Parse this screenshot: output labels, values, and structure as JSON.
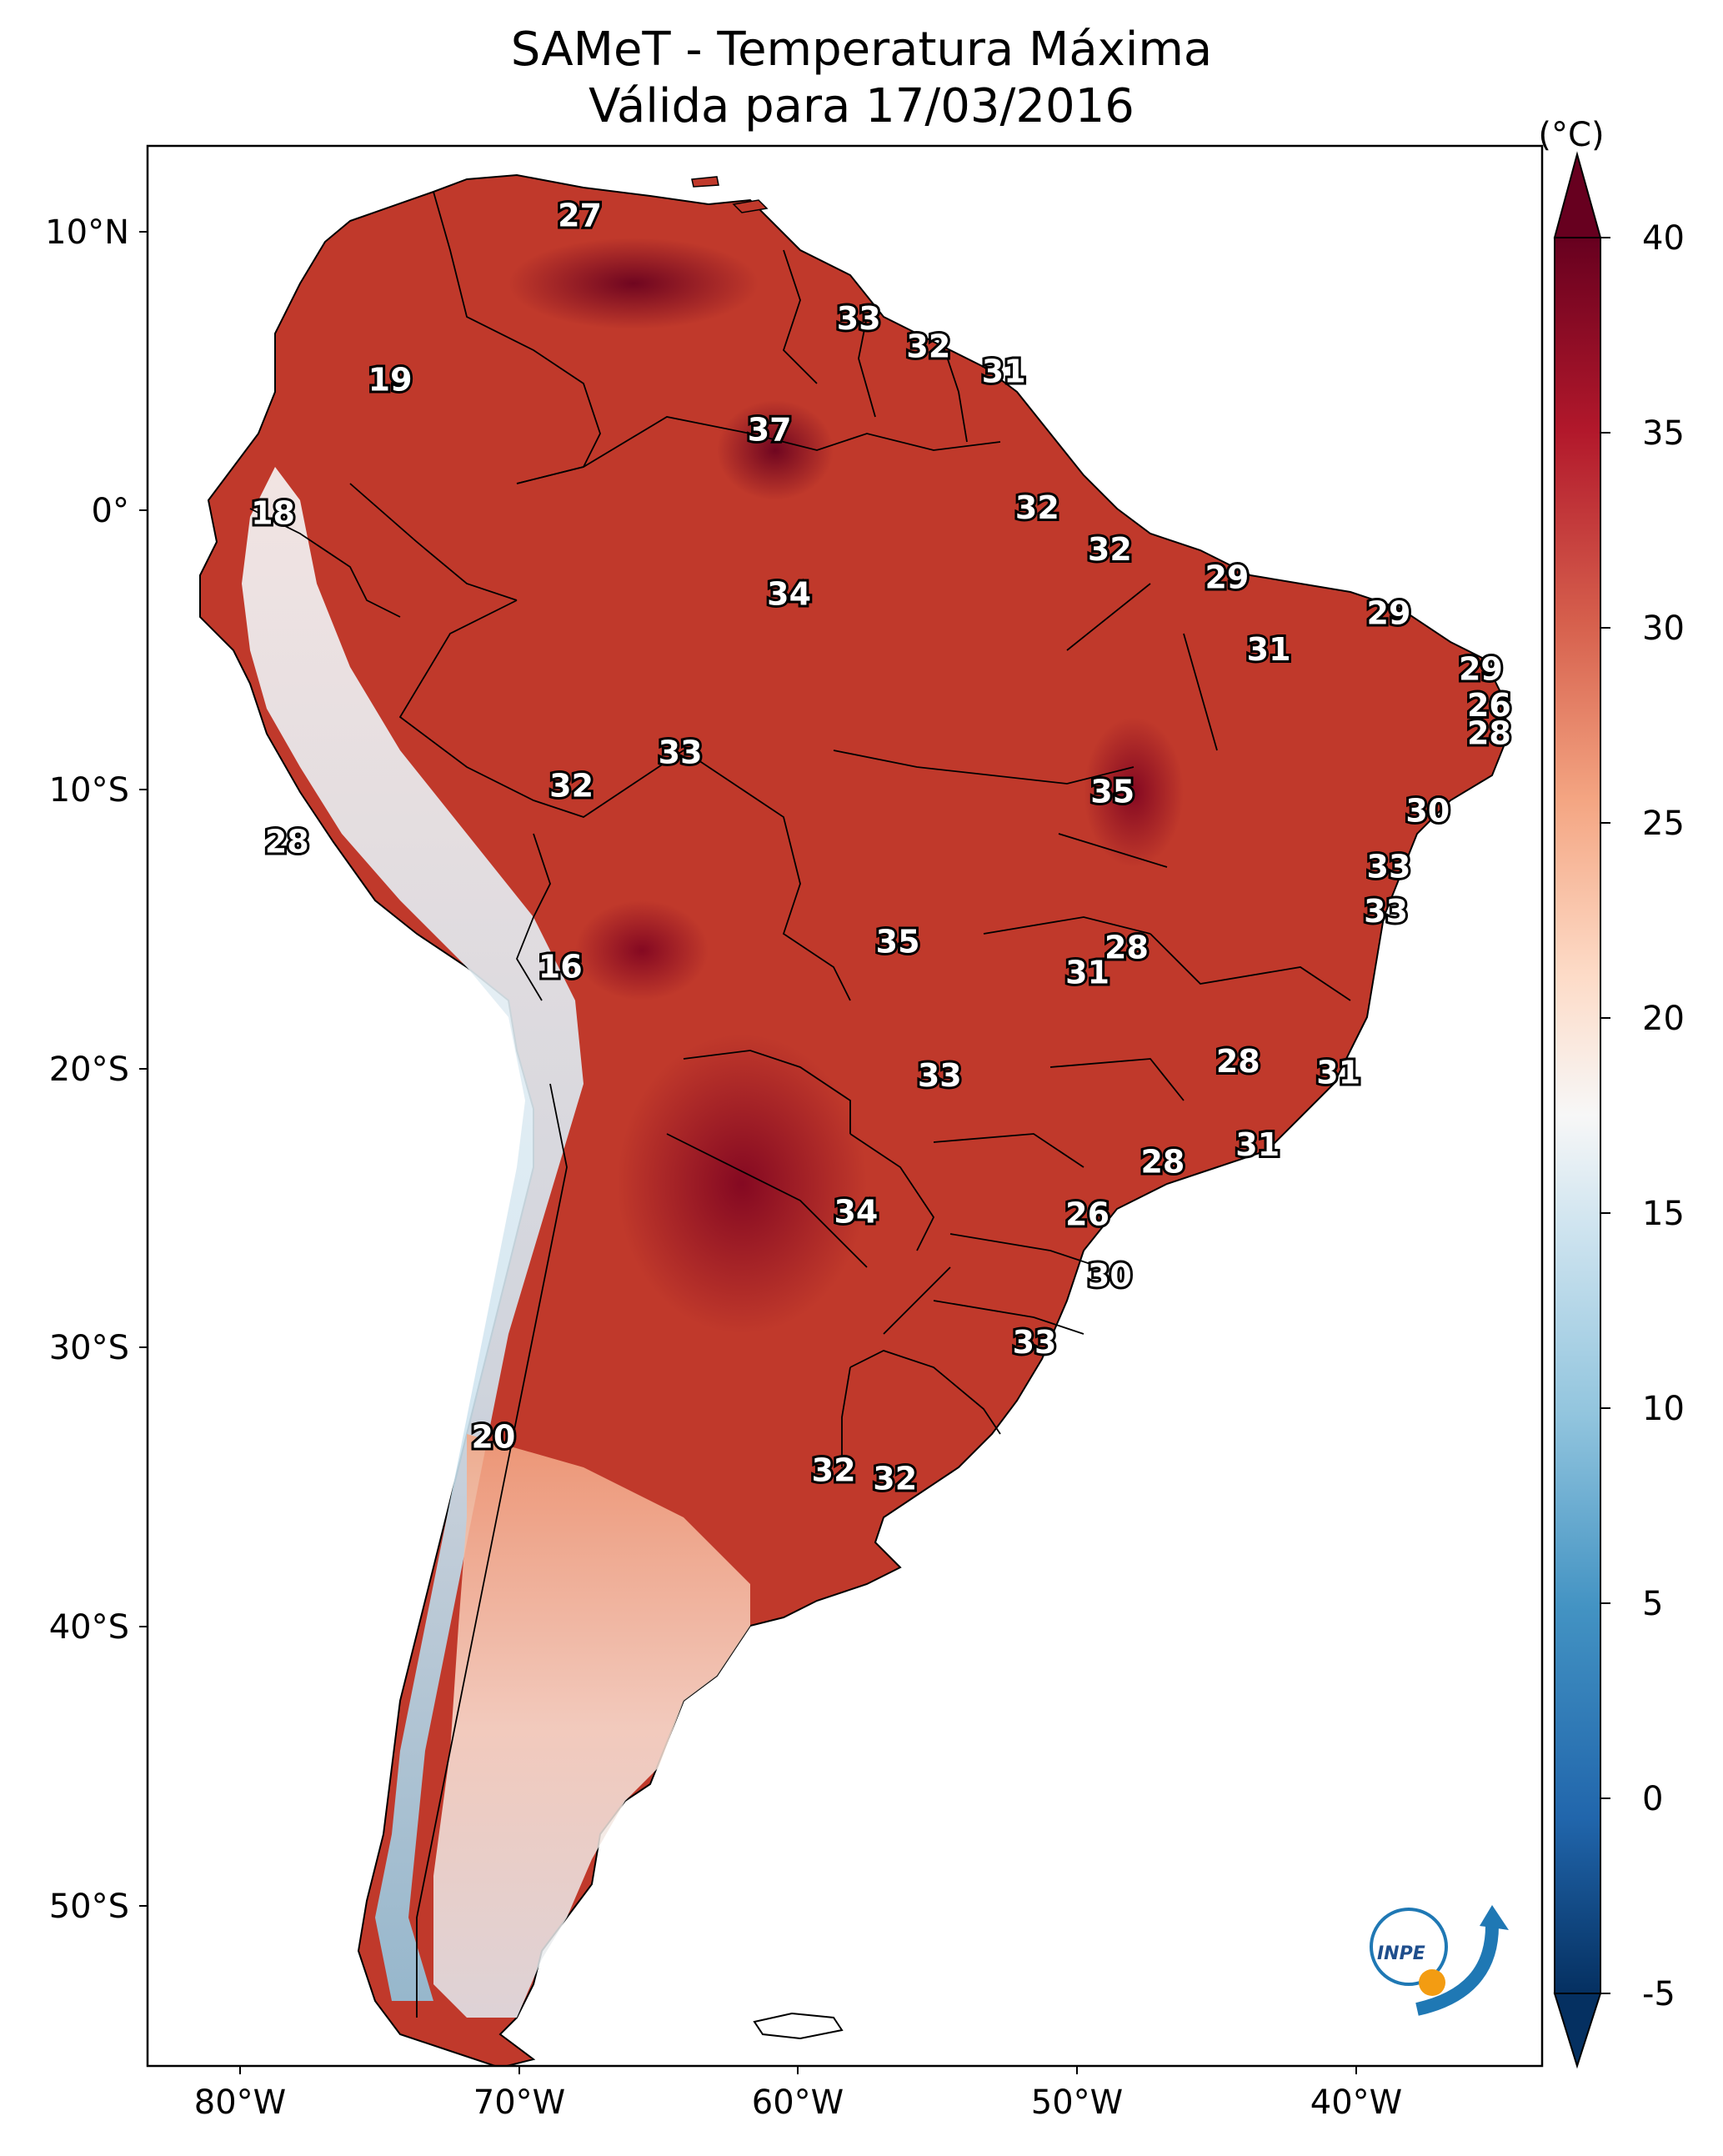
{
  "title": "SAMeT - Temperatura Máxima",
  "subtitle": "Válida para 17/03/2016",
  "colorbar": {
    "unit": "(°C)",
    "ticks": [
      "40",
      "35",
      "30",
      "25",
      "20",
      "15",
      "10",
      "5",
      "0",
      "-5"
    ],
    "range": [
      -5,
      40
    ],
    "colormap": "RdBu_r"
  },
  "map": {
    "lon_ticks": [
      "80°W",
      "70°W",
      "60°W",
      "50°W",
      "40°W"
    ],
    "lat_ticks": [
      "10°N",
      "0°",
      "10°S",
      "20°S",
      "30°S",
      "40°S",
      "50°S"
    ],
    "extent": {
      "lon": [
        -83,
        -33
      ],
      "lat": [
        -56,
        13
      ]
    },
    "background_color": "#ffffff",
    "land_base_color": "#c0392b"
  },
  "city_labels": [
    {
      "text": "27",
      "lon": -67.5,
      "lat": 10.5
    },
    {
      "text": "33",
      "lon": -57.5,
      "lat": 6.8
    },
    {
      "text": "32",
      "lon": -55.0,
      "lat": 5.8
    },
    {
      "text": "31",
      "lon": -52.3,
      "lat": 4.9
    },
    {
      "text": "19",
      "lon": -74.3,
      "lat": 4.6
    },
    {
      "text": "37",
      "lon": -60.7,
      "lat": 2.8
    },
    {
      "text": "18",
      "lon": -78.5,
      "lat": -0.2
    },
    {
      "text": "32",
      "lon": -51.1,
      "lat": 0.0
    },
    {
      "text": "32",
      "lon": -48.5,
      "lat": -1.5
    },
    {
      "text": "29",
      "lon": -44.3,
      "lat": -2.5
    },
    {
      "text": "34",
      "lon": -60.0,
      "lat": -3.1
    },
    {
      "text": "29",
      "lon": -38.5,
      "lat": -3.8
    },
    {
      "text": "31",
      "lon": -42.8,
      "lat": -5.1
    },
    {
      "text": "29",
      "lon": -35.2,
      "lat": -5.8
    },
    {
      "text": "26",
      "lon": -34.9,
      "lat": -7.1
    },
    {
      "text": "28",
      "lon": -34.9,
      "lat": -8.1
    },
    {
      "text": "33",
      "lon": -63.9,
      "lat": -8.8
    },
    {
      "text": "30",
      "lon": -37.1,
      "lat": -10.9
    },
    {
      "text": "32",
      "lon": -67.8,
      "lat": -10.0
    },
    {
      "text": "35",
      "lon": -48.4,
      "lat": -10.2
    },
    {
      "text": "33",
      "lon": -38.5,
      "lat": -12.9
    },
    {
      "text": "28",
      "lon": -78.0,
      "lat": -12.0
    },
    {
      "text": "33",
      "lon": -38.6,
      "lat": -14.5
    },
    {
      "text": "35",
      "lon": -56.1,
      "lat": -15.6
    },
    {
      "text": "28",
      "lon": -47.9,
      "lat": -15.8
    },
    {
      "text": "16",
      "lon": -68.2,
      "lat": -16.5
    },
    {
      "text": "31",
      "lon": -49.3,
      "lat": -16.7
    },
    {
      "text": "28",
      "lon": -43.9,
      "lat": -19.9
    },
    {
      "text": "31",
      "lon": -40.3,
      "lat": -20.3
    },
    {
      "text": "33",
      "lon": -54.6,
      "lat": -20.4
    },
    {
      "text": "31",
      "lon": -43.2,
      "lat": -22.9
    },
    {
      "text": "28",
      "lon": -46.6,
      "lat": -23.5
    },
    {
      "text": "34",
      "lon": -57.6,
      "lat": -25.3
    },
    {
      "text": "26",
      "lon": -49.3,
      "lat": -25.4
    },
    {
      "text": "30",
      "lon": -48.5,
      "lat": -27.6
    },
    {
      "text": "33",
      "lon": -51.2,
      "lat": -30.0
    },
    {
      "text": "20",
      "lon": -70.6,
      "lat": -33.4
    },
    {
      "text": "32",
      "lon": -58.4,
      "lat": -34.6
    },
    {
      "text": "32",
      "lon": -56.2,
      "lat": -34.9
    }
  ]
}
